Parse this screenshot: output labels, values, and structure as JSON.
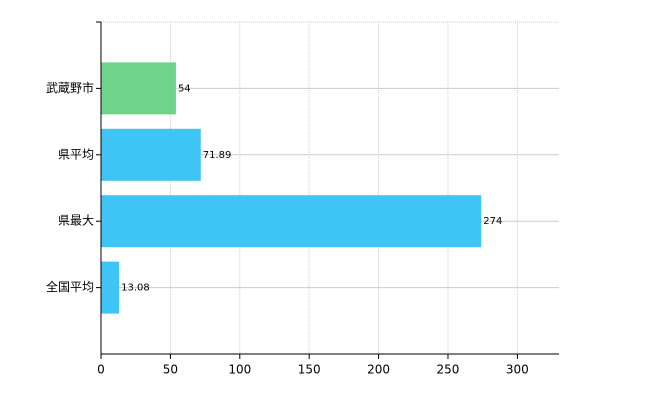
{
  "chart_data": {
    "type": "bar",
    "orientation": "horizontal",
    "categories": [
      "武蔵野市",
      "県平均",
      "県最大",
      "全国平均"
    ],
    "values": [
      54,
      71.89,
      274,
      13.08
    ],
    "colors": [
      "#6fd48a",
      "#3ec5f6",
      "#3ec5f6",
      "#3ec5f6"
    ],
    "xlim": [
      0,
      330
    ],
    "xticks": [
      0,
      50,
      100,
      150,
      200,
      250,
      300
    ],
    "grid": true
  }
}
